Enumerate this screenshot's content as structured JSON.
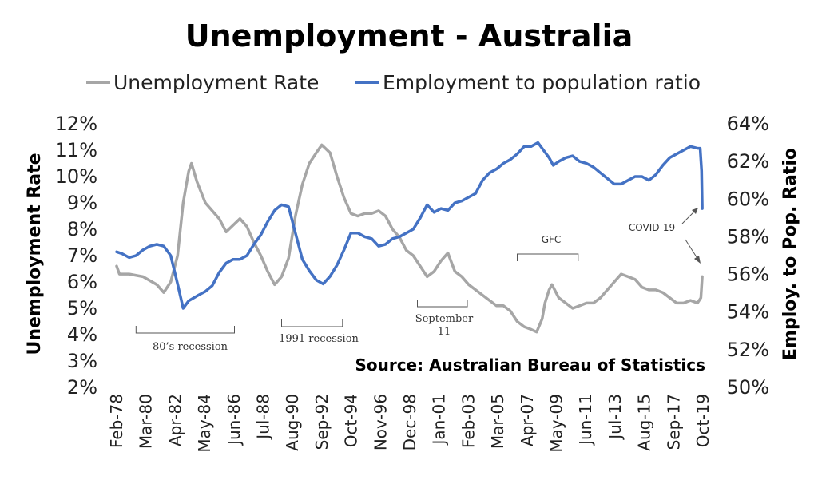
{
  "chart_data": {
    "type": "line",
    "title": "Unemployment - Australia",
    "legend_position": "top",
    "y_left_label": "Unemployment Rate",
    "y_right_label": "Employ. to Pop. Ratio",
    "y_left_range": [
      2,
      12
    ],
    "y_right_range": [
      50,
      64
    ],
    "y_left_ticks": [
      "12%",
      "11%",
      "10%",
      "9%",
      "8%",
      "7%",
      "6%",
      "5%",
      "4%",
      "3%",
      "2%"
    ],
    "y_right_ticks": [
      "64%",
      "62%",
      "60%",
      "58%",
      "56%",
      "54%",
      "52%",
      "50%"
    ],
    "x_ticks": [
      "Feb-78",
      "Mar-80",
      "Apr-82",
      "May-84",
      "Jun-86",
      "Jul-88",
      "Aug-90",
      "Sep-92",
      "Oct-94",
      "Nov-96",
      "Dec-98",
      "Jan-01",
      "Feb-03",
      "Mar-05",
      "Apr-07",
      "May-09",
      "Jun-11",
      "Jul-13",
      "Aug-15",
      "Sep-17",
      "Oct-19"
    ],
    "x_range": [
      1978.1,
      2020.4
    ],
    "grid": false,
    "series": [
      {
        "name": "Unemployment Rate",
        "axis": "left",
        "color": "#a6a6a6",
        "points": [
          [
            1978.1,
            6.6
          ],
          [
            1978.3,
            6.3
          ],
          [
            1979.0,
            6.3
          ],
          [
            1980.0,
            6.2
          ],
          [
            1981.0,
            5.9
          ],
          [
            1981.5,
            5.6
          ],
          [
            1982.0,
            6.0
          ],
          [
            1982.5,
            7.0
          ],
          [
            1982.9,
            9.0
          ],
          [
            1983.3,
            10.2
          ],
          [
            1983.5,
            10.5
          ],
          [
            1983.9,
            9.8
          ],
          [
            1984.5,
            9.0
          ],
          [
            1985.0,
            8.7
          ],
          [
            1985.5,
            8.4
          ],
          [
            1986.0,
            7.9
          ],
          [
            1986.6,
            8.2
          ],
          [
            1987.0,
            8.4
          ],
          [
            1987.5,
            8.1
          ],
          [
            1988.0,
            7.5
          ],
          [
            1988.5,
            7.0
          ],
          [
            1989.0,
            6.4
          ],
          [
            1989.5,
            5.9
          ],
          [
            1990.0,
            6.2
          ],
          [
            1990.5,
            6.9
          ],
          [
            1991.0,
            8.5
          ],
          [
            1991.5,
            9.7
          ],
          [
            1992.0,
            10.5
          ],
          [
            1992.5,
            10.9
          ],
          [
            1992.9,
            11.2
          ],
          [
            1993.5,
            10.9
          ],
          [
            1994.0,
            10.0
          ],
          [
            1994.5,
            9.2
          ],
          [
            1995.0,
            8.6
          ],
          [
            1995.5,
            8.5
          ],
          [
            1996.0,
            8.6
          ],
          [
            1996.5,
            8.6
          ],
          [
            1997.0,
            8.7
          ],
          [
            1997.5,
            8.5
          ],
          [
            1998.0,
            8.0
          ],
          [
            1998.5,
            7.7
          ],
          [
            1999.0,
            7.2
          ],
          [
            1999.5,
            7.0
          ],
          [
            2000.0,
            6.6
          ],
          [
            2000.5,
            6.2
          ],
          [
            2001.0,
            6.4
          ],
          [
            2001.5,
            6.8
          ],
          [
            2002.0,
            7.1
          ],
          [
            2002.5,
            6.4
          ],
          [
            2003.0,
            6.2
          ],
          [
            2003.5,
            5.9
          ],
          [
            2004.0,
            5.7
          ],
          [
            2004.5,
            5.5
          ],
          [
            2005.0,
            5.3
          ],
          [
            2005.5,
            5.1
          ],
          [
            2006.0,
            5.1
          ],
          [
            2006.5,
            4.9
          ],
          [
            2007.0,
            4.5
          ],
          [
            2007.5,
            4.3
          ],
          [
            2008.0,
            4.2
          ],
          [
            2008.4,
            4.1
          ],
          [
            2008.8,
            4.6
          ],
          [
            2009.0,
            5.2
          ],
          [
            2009.3,
            5.7
          ],
          [
            2009.5,
            5.9
          ],
          [
            2010.0,
            5.4
          ],
          [
            2010.5,
            5.2
          ],
          [
            2011.0,
            5.0
          ],
          [
            2011.5,
            5.1
          ],
          [
            2012.0,
            5.2
          ],
          [
            2012.5,
            5.2
          ],
          [
            2013.0,
            5.4
          ],
          [
            2013.5,
            5.7
          ],
          [
            2014.0,
            6.0
          ],
          [
            2014.5,
            6.3
          ],
          [
            2015.0,
            6.2
          ],
          [
            2015.5,
            6.1
          ],
          [
            2016.0,
            5.8
          ],
          [
            2016.5,
            5.7
          ],
          [
            2017.0,
            5.7
          ],
          [
            2017.5,
            5.6
          ],
          [
            2018.0,
            5.4
          ],
          [
            2018.5,
            5.2
          ],
          [
            2019.0,
            5.2
          ],
          [
            2019.5,
            5.3
          ],
          [
            2020.0,
            5.2
          ],
          [
            2020.25,
            5.4
          ],
          [
            2020.35,
            6.2
          ]
        ]
      },
      {
        "name": "Employment to population ratio",
        "axis": "right",
        "color": "#4472c4",
        "points": [
          [
            1978.1,
            57.2
          ],
          [
            1978.5,
            57.1
          ],
          [
            1979.0,
            56.9
          ],
          [
            1979.5,
            57.0
          ],
          [
            1980.0,
            57.3
          ],
          [
            1980.5,
            57.5
          ],
          [
            1981.0,
            57.6
          ],
          [
            1981.5,
            57.5
          ],
          [
            1982.0,
            57.0
          ],
          [
            1982.5,
            55.5
          ],
          [
            1982.9,
            54.2
          ],
          [
            1983.3,
            54.6
          ],
          [
            1984.0,
            54.9
          ],
          [
            1984.5,
            55.1
          ],
          [
            1985.0,
            55.4
          ],
          [
            1985.5,
            56.1
          ],
          [
            1986.0,
            56.6
          ],
          [
            1986.5,
            56.8
          ],
          [
            1987.0,
            56.8
          ],
          [
            1987.5,
            57.0
          ],
          [
            1988.0,
            57.6
          ],
          [
            1988.5,
            58.1
          ],
          [
            1989.0,
            58.8
          ],
          [
            1989.5,
            59.4
          ],
          [
            1990.0,
            59.7
          ],
          [
            1990.5,
            59.6
          ],
          [
            1991.0,
            58.2
          ],
          [
            1991.5,
            56.8
          ],
          [
            1992.0,
            56.2
          ],
          [
            1992.5,
            55.7
          ],
          [
            1993.0,
            55.5
          ],
          [
            1993.5,
            55.9
          ],
          [
            1994.0,
            56.5
          ],
          [
            1994.5,
            57.3
          ],
          [
            1995.0,
            58.2
          ],
          [
            1995.5,
            58.2
          ],
          [
            1996.0,
            58.0
          ],
          [
            1996.5,
            57.9
          ],
          [
            1997.0,
            57.5
          ],
          [
            1997.5,
            57.6
          ],
          [
            1998.0,
            57.9
          ],
          [
            1998.5,
            58.0
          ],
          [
            1999.0,
            58.2
          ],
          [
            1999.5,
            58.4
          ],
          [
            2000.0,
            59.0
          ],
          [
            2000.5,
            59.7
          ],
          [
            2001.0,
            59.3
          ],
          [
            2001.5,
            59.5
          ],
          [
            2002.0,
            59.4
          ],
          [
            2002.5,
            59.8
          ],
          [
            2003.0,
            59.9
          ],
          [
            2003.5,
            60.1
          ],
          [
            2004.0,
            60.3
          ],
          [
            2004.5,
            61.0
          ],
          [
            2005.0,
            61.4
          ],
          [
            2005.5,
            61.6
          ],
          [
            2006.0,
            61.9
          ],
          [
            2006.5,
            62.1
          ],
          [
            2007.0,
            62.4
          ],
          [
            2007.5,
            62.8
          ],
          [
            2008.0,
            62.8
          ],
          [
            2008.5,
            63.0
          ],
          [
            2008.9,
            62.6
          ],
          [
            2009.3,
            62.2
          ],
          [
            2009.6,
            61.8
          ],
          [
            2010.0,
            62.0
          ],
          [
            2010.5,
            62.2
          ],
          [
            2011.0,
            62.3
          ],
          [
            2011.5,
            62.0
          ],
          [
            2012.0,
            61.9
          ],
          [
            2012.5,
            61.7
          ],
          [
            2013.0,
            61.4
          ],
          [
            2013.5,
            61.1
          ],
          [
            2014.0,
            60.8
          ],
          [
            2014.5,
            60.8
          ],
          [
            2015.0,
            61.0
          ],
          [
            2015.5,
            61.2
          ],
          [
            2016.0,
            61.2
          ],
          [
            2016.5,
            61.0
          ],
          [
            2017.0,
            61.3
          ],
          [
            2017.5,
            61.8
          ],
          [
            2018.0,
            62.2
          ],
          [
            2018.5,
            62.4
          ],
          [
            2019.0,
            62.6
          ],
          [
            2019.5,
            62.8
          ],
          [
            2020.0,
            62.7
          ],
          [
            2020.2,
            62.7
          ],
          [
            2020.3,
            61.5
          ],
          [
            2020.35,
            59.5
          ]
        ]
      }
    ],
    "annotations": [
      {
        "text": "80’s recession",
        "from": 1979.5,
        "to": 1986.6
      },
      {
        "text": "1991 recession",
        "from": 1990.0,
        "to": 1994.4
      },
      {
        "text_lines": [
          "September",
          "11"
        ],
        "from": 1999.8,
        "to": 2003.4
      },
      {
        "text": "GFC",
        "from": 2007.0,
        "to": 2011.4
      },
      {
        "text": "COVID-19"
      }
    ],
    "source": "Source: Australian Bureau of Statistics"
  }
}
